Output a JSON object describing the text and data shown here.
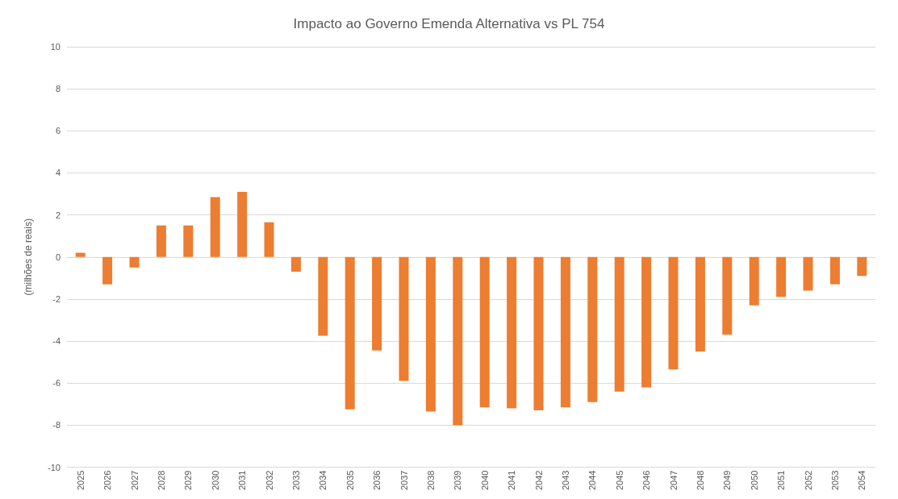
{
  "chart_data": {
    "type": "bar",
    "title": "Impacto ao Governo Emenda Alternativa vs PL 754",
    "ylabel": "(milhões de reais)",
    "categories": [
      "2025",
      "2026",
      "2027",
      "2028",
      "2029",
      "2030",
      "2031",
      "2032",
      "2033",
      "2034",
      "2035",
      "2036",
      "2037",
      "2038",
      "2039",
      "2040",
      "2041",
      "2042",
      "2043",
      "2044",
      "2045",
      "2046",
      "2047",
      "2048",
      "2049",
      "2050",
      "2051",
      "2052",
      "2053",
      "2054"
    ],
    "values": [
      0.2,
      -1.3,
      -0.5,
      1.5,
      1.5,
      2.85,
      3.1,
      1.65,
      -0.7,
      -3.75,
      -7.25,
      -4.45,
      -5.9,
      -7.35,
      -8.0,
      -7.15,
      -7.2,
      -7.3,
      -7.15,
      -6.9,
      -6.4,
      -6.2,
      -5.35,
      -4.5,
      -3.7,
      -2.3,
      -1.9,
      -1.6,
      -1.3,
      -0.9
    ],
    "color": "#ed7d31",
    "ylim": [
      -10,
      10
    ],
    "yticks": [
      -10,
      -8,
      -6,
      -4,
      -2,
      0,
      2,
      4,
      6,
      8,
      10
    ],
    "grid": "y"
  }
}
